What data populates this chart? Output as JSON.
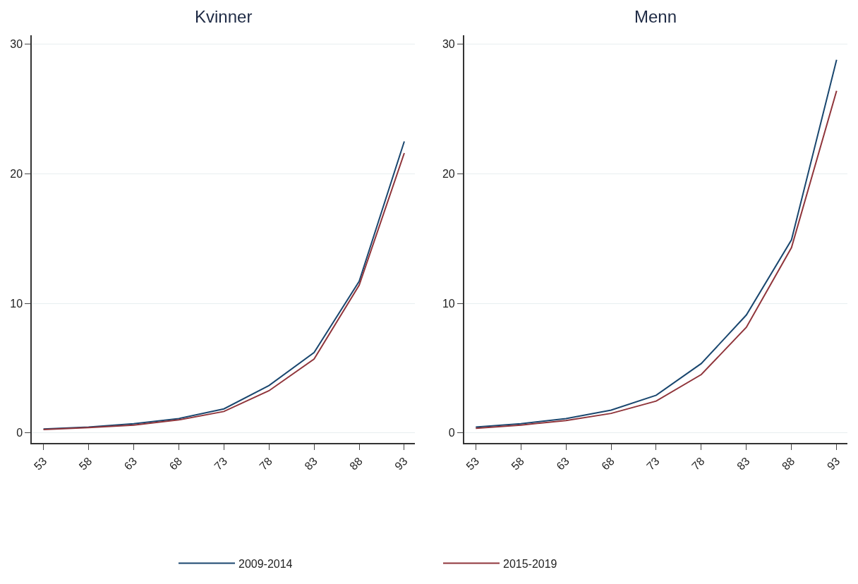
{
  "chart_data": [
    {
      "type": "line",
      "title": "Kvinner",
      "x": [
        53,
        58,
        63,
        68,
        73,
        78,
        83,
        88,
        93
      ],
      "xlim": [
        51.7,
        94.2
      ],
      "xticks": [
        53,
        58,
        63,
        68,
        73,
        78,
        83,
        88,
        93
      ],
      "ylim": [
        -0.8,
        30.7
      ],
      "yticks": [
        0,
        10,
        20,
        30
      ],
      "grid": "y",
      "legend": "bottom",
      "marker": "none",
      "line_style": "solid",
      "series": [
        {
          "name": "2009-2014",
          "color": "#1a476f",
          "values": [
            0.3,
            0.45,
            0.7,
            1.1,
            1.85,
            3.65,
            6.2,
            11.7,
            22.5
          ]
        },
        {
          "name": "2015-2019",
          "color": "#90353b",
          "values": [
            0.25,
            0.4,
            0.6,
            1.0,
            1.65,
            3.25,
            5.7,
            11.4,
            21.6
          ]
        }
      ]
    },
    {
      "type": "line",
      "title": "Menn",
      "x": [
        53,
        58,
        63,
        68,
        73,
        78,
        83,
        88,
        93
      ],
      "xlim": [
        51.7,
        94.2
      ],
      "xticks": [
        53,
        58,
        63,
        68,
        73,
        78,
        83,
        88,
        93
      ],
      "ylim": [
        -0.8,
        30.7
      ],
      "yticks": [
        0,
        10,
        20,
        30
      ],
      "grid": "y",
      "legend": "bottom",
      "marker": "none",
      "line_style": "solid",
      "series": [
        {
          "name": "2009-2014",
          "color": "#1a476f",
          "values": [
            0.45,
            0.7,
            1.1,
            1.75,
            2.9,
            5.35,
            9.1,
            14.9,
            28.8
          ]
        },
        {
          "name": "2015-2019",
          "color": "#90353b",
          "values": [
            0.35,
            0.6,
            0.95,
            1.5,
            2.45,
            4.5,
            8.15,
            14.3,
            26.4
          ]
        }
      ]
    }
  ]
}
